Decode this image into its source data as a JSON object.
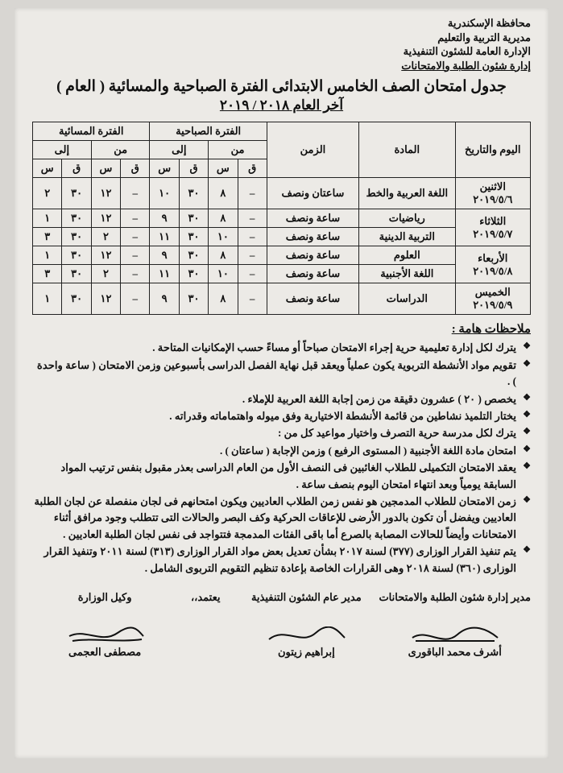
{
  "header": {
    "l1": "محافظة الإسكندرية",
    "l2": "مديرية التربية والتعليم",
    "l3": "الإدارة العامة للشئون التنفيذية",
    "l4": "إدارة شئون الطلبة والامتحانات"
  },
  "title": "جدول امتحان الصف الخامس الابتدائى الفترة الصباحية والمسائية ( العام )",
  "subtitle": "آخر العام ٢٠١٨ / ٢٠١٩",
  "table": {
    "head": {
      "day": "اليوم والتاريخ",
      "subject": "المادة",
      "duration": "الزمن",
      "morning": "الفترة الصباحية",
      "evening": "الفترة المسائية",
      "from": "من",
      "to": "إلى",
      "h": "س",
      "m": "ق"
    },
    "rows": [
      {
        "day": "الاثنين",
        "date": "٢٠١٩/٥/٦",
        "subject": "اللغة العربية والخط",
        "dur": "ساعتان ونصف",
        "mf_m": "–",
        "mf_h": "٨",
        "mt_m": "٣٠",
        "mt_h": "١٠",
        "ef_m": "–",
        "ef_h": "١٢",
        "et_m": "٣٠",
        "et_h": "٢",
        "span": 1
      },
      {
        "day": "الثلاثاء",
        "date": "٢٠١٩/٥/٧",
        "subject": "رياضيات",
        "dur": "ساعة ونصف",
        "mf_m": "–",
        "mf_h": "٨",
        "mt_m": "٣٠",
        "mt_h": "٩",
        "ef_m": "–",
        "ef_h": "١٢",
        "et_m": "٣٠",
        "et_h": "١",
        "span": 2
      },
      {
        "subject": "التربية الدينية",
        "dur": "ساعة ونصف",
        "mf_m": "–",
        "mf_h": "١٠",
        "mt_m": "٣٠",
        "mt_h": "١١",
        "ef_m": "–",
        "ef_h": "٢",
        "et_m": "٣٠",
        "et_h": "٣"
      },
      {
        "day": "الأربعاء",
        "date": "٢٠١٩/٥/٨",
        "subject": "العلوم",
        "dur": "ساعة ونصف",
        "mf_m": "–",
        "mf_h": "٨",
        "mt_m": "٣٠",
        "mt_h": "٩",
        "ef_m": "–",
        "ef_h": "١٢",
        "et_m": "٣٠",
        "et_h": "١",
        "span": 2
      },
      {
        "subject": "اللغة الأجنبية",
        "dur": "ساعة ونصف",
        "mf_m": "–",
        "mf_h": "١٠",
        "mt_m": "٣٠",
        "mt_h": "١١",
        "ef_m": "–",
        "ef_h": "٢",
        "et_m": "٣٠",
        "et_h": "٣"
      },
      {
        "day": "الخميس",
        "date": "٢٠١٩/٥/٩",
        "subject": "الدراسات",
        "dur": "ساعة ونصف",
        "mf_m": "–",
        "mf_h": "٨",
        "mt_m": "٣٠",
        "mt_h": "٩",
        "ef_m": "–",
        "ef_h": "١٢",
        "et_m": "٣٠",
        "et_h": "١",
        "span": 1
      }
    ]
  },
  "notes_head": "ملاحظات هامة :",
  "notes": [
    "يترك لكل إدارة تعليمية حرية إجراء الامتحان صباحاً أو مساءً حسب الإمكانيات المتاحة .",
    "تقويم مواد الأنشطة التربوية يكون عملياً ويعقد قبل نهاية الفصل الدراسى بأسبوعين وزمن الامتحان ( ساعة واحدة ) .",
    "يخصص ( ٢٠ ) عشرون دقيقة من زمن إجابة اللغة العربية للإملاء .",
    "يختار التلميذ نشاطين من قائمة الأنشطة الاختيارية وفق ميوله واهتماماته وقدراته .",
    "يترك لكل مدرسة حرية التصرف واختيار مواعيد كل من :",
    "يعقد الامتحان التكميلى للطلاب الغائبين فى النصف الأول من العام الدراسى بعذر مقبول بنفس ترتيب المواد السابقة يومياً وبعد انتهاء امتحان اليوم بنصف ساعة .",
    "زمن الامتحان للطلاب المدمجين هو نفس زمن الطلاب العاديين ويكون امتحانهم فى لجان منفصلة عن لجان الطلبة العاديين ويفضل أن تكون بالدور الأرضى للإعاقات الحركية وكف البصر والحالات التى تتطلب وجود مرافق أثناء الامتحانات وأيضاً للحالات المصابة بالصرع أما باقى الفئات المدمجة فتتواجد فى نفس لجان الطلبة العاديين .",
    "يتم تنفيذ القرار الوزارى (٣٧٧) لسنة ٢٠١٧ بشأن تعديل بعض مواد القرار الوزارى (٣١٣) لسنة ٢٠١١ وتنفيذ القرار الوزارى (٣٦٠) لسنة ٢٠١٨  وهى القرارات الخاصة بإعادة تنظيم التقويم التربوى الشامل ."
  ],
  "subnote": "امتحان مادة اللغة الأجنبية ( المستوى الرفيع ) وزمن الإجابة ( ساعتان ) .",
  "sign": {
    "r1_role": "مدير إدارة شئون الطلبة والامتحانات",
    "r1_name": "أشرف محمد الباقورى",
    "r2_role": "مدير عام الشئون التنفيذية",
    "r2_name": "إبراهيم زيتون",
    "approve": "يعتمد،،",
    "r3_role": "وكيل الوزارة",
    "r3_name": "مصطفى العجمى"
  }
}
